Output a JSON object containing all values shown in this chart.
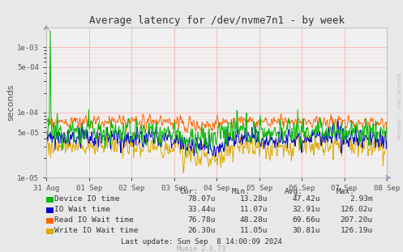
{
  "title": "Average latency for /dev/nvme7n1 - by week",
  "ylabel": "seconds",
  "background_color": "#e8e8e8",
  "plot_bg_color": "#f0f0f0",
  "grid_color_major": "#ffaaaa",
  "grid_color_minor": "#ffcccc",
  "x_tick_labels": [
    "31 Aug",
    "01 Sep",
    "02 Sep",
    "03 Sep",
    "04 Sep",
    "05 Sep",
    "06 Sep",
    "07 Sep",
    "08 Sep"
  ],
  "yticks": [
    1e-05,
    5e-05,
    0.0001,
    0.0005,
    0.001
  ],
  "ytick_labels": [
    "1e-05",
    "5e-05",
    "1e-04",
    "5e-04",
    "1e-03"
  ],
  "legend_labels": [
    "Device IO time",
    "IO Wait time",
    "Read IO Wait time",
    "Write IO Wait time"
  ],
  "legend_colors": [
    "#00bb00",
    "#0000cc",
    "#ff6600",
    "#ddaa00"
  ],
  "table_headers": [
    "Cur:",
    "Min:",
    "Avg:",
    "Max:"
  ],
  "table_rows": [
    [
      "78.07u",
      "13.28u",
      "47.42u",
      "2.93m"
    ],
    [
      "33.44u",
      "11.07u",
      "32.91u",
      "126.02u"
    ],
    [
      "76.78u",
      "48.28u",
      "69.66u",
      "207.20u"
    ],
    [
      "26.30u",
      "11.05u",
      "30.81u",
      "126.19u"
    ]
  ],
  "last_update": "Last update: Sun Sep  8 14:00:09 2024",
  "munin_version": "Munin 2.0.73",
  "watermark": "RRDTOOL / TOBI OETIKER",
  "n_points": 700,
  "figwidth": 4.97,
  "figheight": 3.11,
  "dpi": 100
}
